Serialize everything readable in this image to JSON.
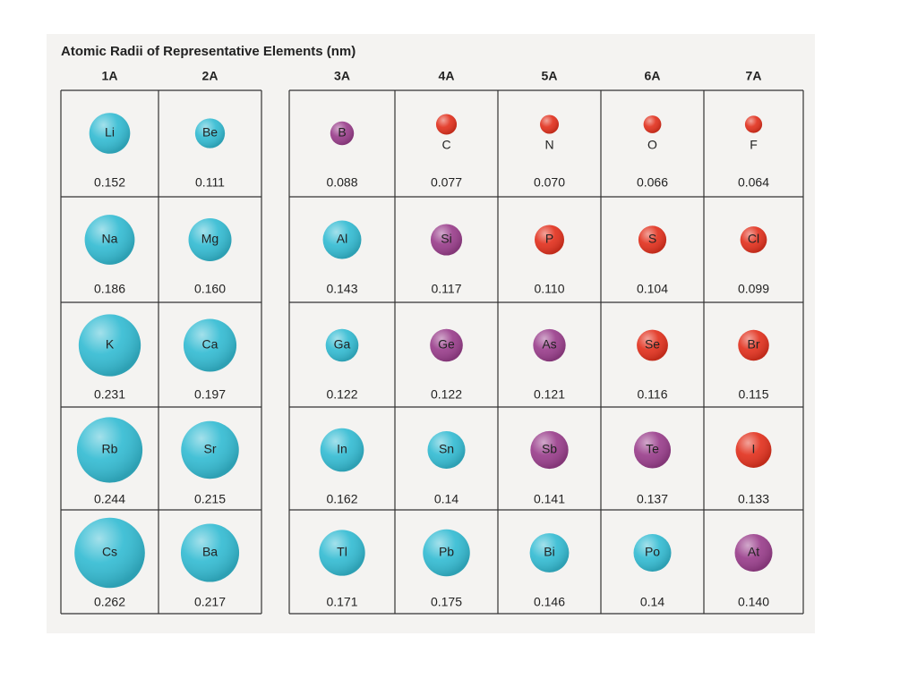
{
  "title": "Atomic Radii of Representative Elements (nm)",
  "groups": [
    {
      "label": "1A",
      "elements": [
        {
          "symbol": "Li",
          "radius": "0.152",
          "color": "#35bcd3"
        },
        {
          "symbol": "Na",
          "radius": "0.186",
          "color": "#35bcd3"
        },
        {
          "symbol": "K",
          "radius": "0.231",
          "color": "#35bcd3"
        },
        {
          "symbol": "Rb",
          "radius": "0.244",
          "color": "#35bcd3"
        },
        {
          "symbol": "Cs",
          "radius": "0.262",
          "color": "#35bcd3"
        }
      ]
    },
    {
      "label": "2A",
      "elements": [
        {
          "symbol": "Be",
          "radius": "0.111",
          "color": "#35bcd3"
        },
        {
          "symbol": "Mg",
          "radius": "0.160",
          "color": "#35bcd3"
        },
        {
          "symbol": "Ca",
          "radius": "0.197",
          "color": "#35bcd3"
        },
        {
          "symbol": "Sr",
          "radius": "0.215",
          "color": "#35bcd3"
        },
        {
          "symbol": "Ba",
          "radius": "0.217",
          "color": "#35bcd3"
        }
      ]
    },
    {
      "label": "3A",
      "elements": [
        {
          "symbol": "B",
          "radius": "0.088",
          "color": "#9a3f8c"
        },
        {
          "symbol": "Al",
          "radius": "0.143",
          "color": "#35bcd3"
        },
        {
          "symbol": "Ga",
          "radius": "0.122",
          "color": "#35bcd3"
        },
        {
          "symbol": "In",
          "radius": "0.162",
          "color": "#35bcd3"
        },
        {
          "symbol": "Tl",
          "radius": "0.171",
          "color": "#35bcd3"
        }
      ]
    },
    {
      "label": "4A",
      "elements": [
        {
          "symbol": "C",
          "radius": "0.077",
          "color": "#e2321f"
        },
        {
          "symbol": "Si",
          "radius": "0.117",
          "color": "#9a3f8c"
        },
        {
          "symbol": "Ge",
          "radius": "0.122",
          "color": "#9a3f8c"
        },
        {
          "symbol": "Sn",
          "radius": "0.14",
          "color": "#35bcd3"
        },
        {
          "symbol": "Pb",
          "radius": "0.175",
          "color": "#35bcd3"
        }
      ]
    },
    {
      "label": "5A",
      "elements": [
        {
          "symbol": "N",
          "radius": "0.070",
          "color": "#e2321f"
        },
        {
          "symbol": "P",
          "radius": "0.110",
          "color": "#e2321f"
        },
        {
          "symbol": "As",
          "radius": "0.121",
          "color": "#9a3f8c"
        },
        {
          "symbol": "Sb",
          "radius": "0.141",
          "color": "#9a3f8c"
        },
        {
          "symbol": "Bi",
          "radius": "0.146",
          "color": "#35bcd3"
        }
      ]
    },
    {
      "label": "6A",
      "elements": [
        {
          "symbol": "O",
          "radius": "0.066",
          "color": "#e2321f"
        },
        {
          "symbol": "S",
          "radius": "0.104",
          "color": "#e2321f"
        },
        {
          "symbol": "Se",
          "radius": "0.116",
          "color": "#e2321f"
        },
        {
          "symbol": "Te",
          "radius": "0.137",
          "color": "#9a3f8c"
        },
        {
          "symbol": "Po",
          "radius": "0.14",
          "color": "#35bcd3"
        }
      ]
    },
    {
      "label": "7A",
      "elements": [
        {
          "symbol": "F",
          "radius": "0.064",
          "color": "#e2321f"
        },
        {
          "symbol": "Cl",
          "radius": "0.099",
          "color": "#e2321f"
        },
        {
          "symbol": "Br",
          "radius": "0.115",
          "color": "#e2321f"
        },
        {
          "symbol": "I",
          "radius": "0.133",
          "color": "#e2321f"
        },
        {
          "symbol": "At",
          "radius": "0.140",
          "color": "#9a3f8c"
        }
      ]
    }
  ]
}
